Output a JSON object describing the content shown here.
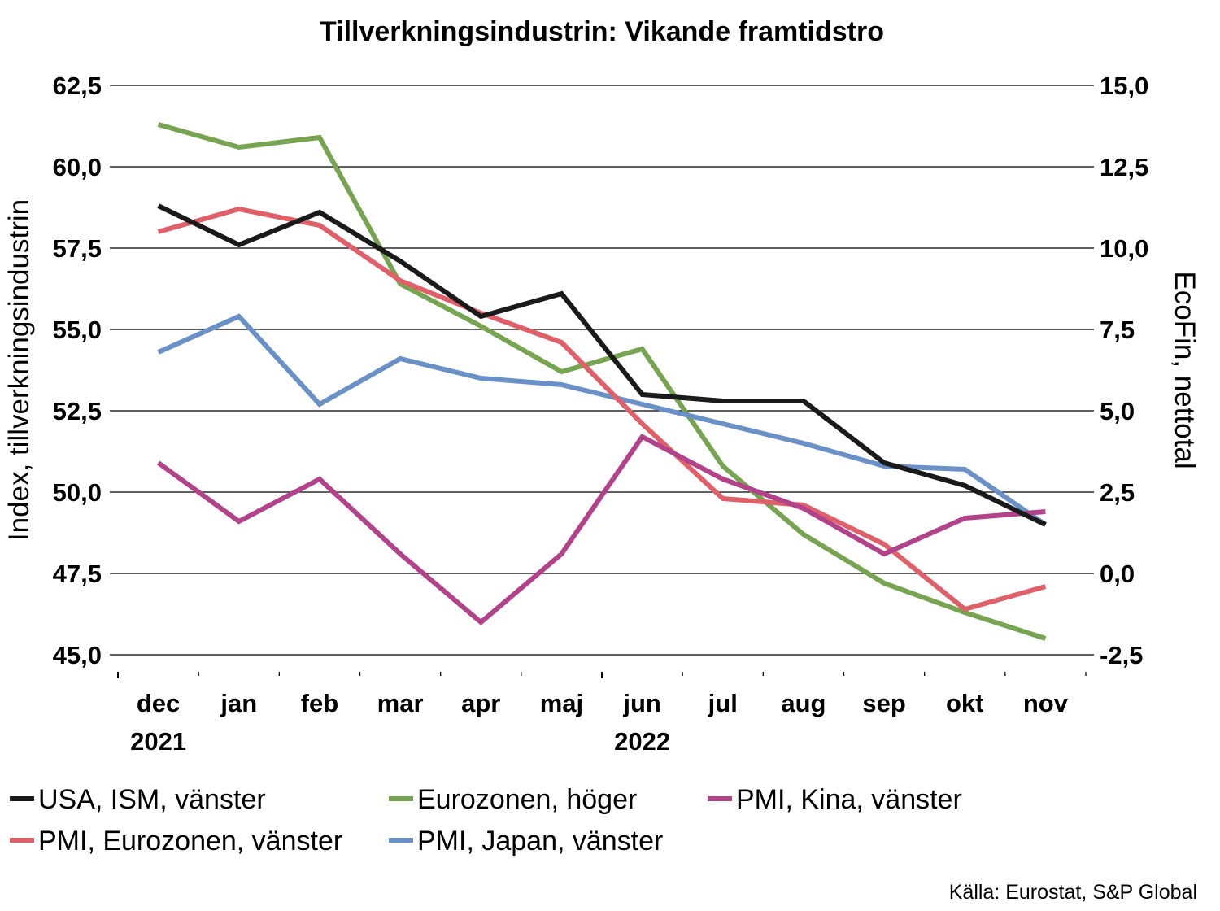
{
  "chart_data": {
    "type": "line",
    "title": "Tillverkningsindustrin: Vikande framtidstro",
    "ylabel_left": "Index, tillverkningsindustrin",
    "ylabel_right": "EcoFin, nettotal",
    "ylim_left": [
      45.0,
      62.5
    ],
    "ylim_right": [
      -2.5,
      15.0
    ],
    "yticks_left": [
      "45,0",
      "47,5",
      "50,0",
      "52,5",
      "55,0",
      "57,5",
      "60,0",
      "62,5"
    ],
    "yticks_right": [
      "-2,5",
      "0,0",
      "2,5",
      "5,0",
      "7,5",
      "10,0",
      "12,5",
      "15,0"
    ],
    "categories": [
      "dec",
      "jan",
      "feb",
      "mar",
      "apr",
      "maj",
      "jun",
      "jul",
      "aug",
      "sep",
      "okt",
      "nov"
    ],
    "year_labels": [
      {
        "label": "2021",
        "category_index": 0
      },
      {
        "label": "2022",
        "category_index": 6
      }
    ],
    "grid": true,
    "legend_position": "bottom",
    "series": [
      {
        "name": "USA, ISM, vänster",
        "axis": "left",
        "color": "#1a1a1a",
        "values": [
          58.8,
          57.6,
          58.6,
          57.1,
          55.4,
          56.1,
          53.0,
          52.8,
          52.8,
          50.9,
          50.2,
          49.0
        ]
      },
      {
        "name": "Eurozonen, höger",
        "axis": "right",
        "color": "#77a450",
        "values": [
          13.8,
          13.1,
          13.4,
          8.9,
          7.6,
          6.2,
          6.9,
          3.3,
          1.2,
          -0.3,
          -1.2,
          -2.0
        ]
      },
      {
        "name": "PMI, Kina, vänster",
        "axis": "left",
        "color": "#b2438a",
        "values": [
          50.9,
          49.1,
          50.4,
          48.1,
          46.0,
          48.1,
          51.7,
          50.4,
          49.5,
          48.1,
          49.2,
          49.4
        ]
      },
      {
        "name": "PMI, Eurozonen, vänster",
        "axis": "left",
        "color": "#e0606a",
        "values": [
          58.0,
          58.7,
          58.2,
          56.5,
          55.5,
          54.6,
          52.1,
          49.8,
          49.6,
          48.4,
          46.4,
          47.1
        ]
      },
      {
        "name": "PMI, Japan, vänster",
        "axis": "left",
        "color": "#6a90c8",
        "values": [
          54.3,
          55.4,
          52.7,
          54.1,
          53.5,
          53.3,
          52.7,
          52.1,
          51.5,
          50.8,
          50.7,
          49.0
        ]
      }
    ],
    "legend_order": [
      "USA, ISM, vänster",
      "Eurozonen, höger",
      "PMI, Kina, vänster",
      "PMI, Eurozonen, vänster",
      "PMI, Japan, vänster"
    ],
    "source": "Källa: Eurostat, S&P Global"
  }
}
